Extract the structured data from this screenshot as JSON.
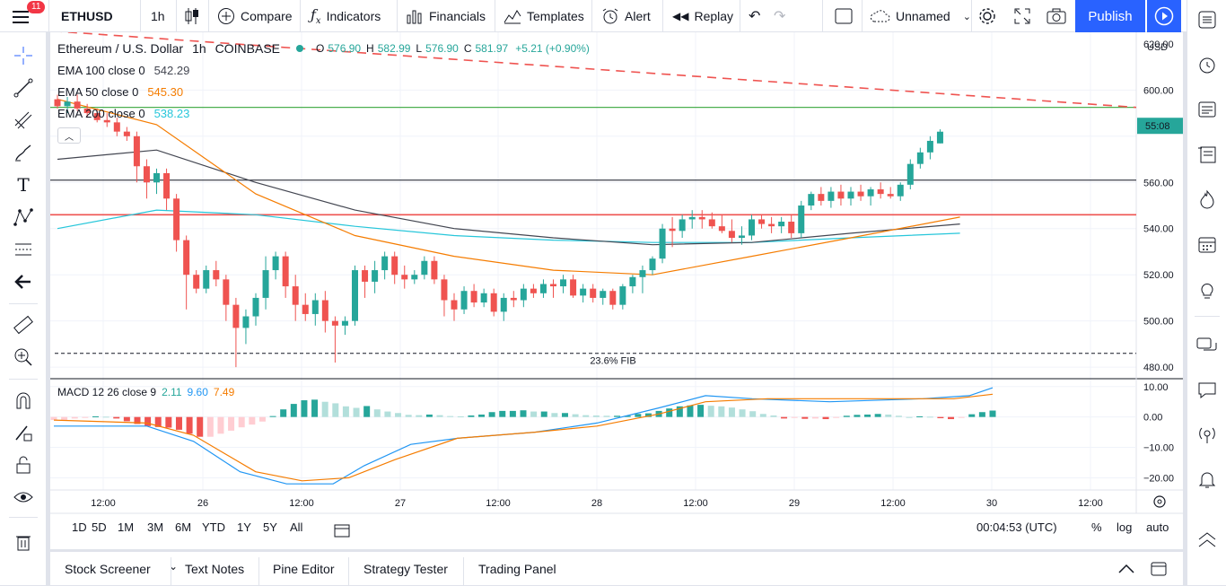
{
  "toolbar": {
    "menu_badge": "11",
    "symbol": "ETHUSD",
    "interval": "1h",
    "compare": "Compare",
    "indicators": "Indicators",
    "financials": "Financials",
    "templates": "Templates",
    "alert": "Alert",
    "replay": "Replay",
    "layout_name": "Unnamed",
    "publish": "Publish"
  },
  "legend": {
    "title": "Ethereum / U.S. Dollar",
    "interval": "1h",
    "exchange": "COINBASE",
    "o_label": "O",
    "o": "576.90",
    "h_label": "H",
    "h": "582.99",
    "l_label": "L",
    "l": "576.90",
    "c_label": "C",
    "c": "581.97",
    "change": "+5.21 (+0.90%)",
    "ema100_label": "EMA 100 close 0",
    "ema100_value": "542.29",
    "ema50_label": "EMA 50 close 0",
    "ema50_value": "545.30",
    "ema200_label": "EMA 200 close 0",
    "ema200_value": "538.23",
    "macd_label": "MACD 12 26 close 9",
    "macd_hist": "2.11",
    "macd_line": "9.60",
    "macd_signal": "7.49"
  },
  "price_axis": {
    "currency": "USD",
    "ticks": [
      "620.00",
      "600.00",
      "560.00",
      "540.00",
      "520.00",
      "500.00",
      "480.00"
    ],
    "current_price_label": "55:08"
  },
  "macd_axis": {
    "ticks": [
      "10.00",
      "0.00",
      "−10.00",
      "−20.00"
    ]
  },
  "time_axis": {
    "ticks": [
      "12:00",
      "26",
      "12:00",
      "27",
      "12:00",
      "28",
      "12:00",
      "29",
      "12:00",
      "30",
      "12:00"
    ]
  },
  "fib_label": "23.6% FIB",
  "ranges": [
    "1D",
    "5D",
    "1M",
    "3M",
    "6M",
    "YTD",
    "1Y",
    "5Y",
    "All"
  ],
  "clock": "00:04:53 (UTC)",
  "scale_options": {
    "percent": "%",
    "log": "log",
    "auto": "auto"
  },
  "bottom_tabs": [
    "Stock Screener",
    "Text Notes",
    "Pine Editor",
    "Strategy Tester",
    "Trading Panel"
  ],
  "colors": {
    "up": "#26a69a",
    "down": "#ef5350",
    "ema50": "#f57c00",
    "ema100": "#434651",
    "ema200": "#26c6da",
    "accent": "#2962ff"
  },
  "chart_data": {
    "type": "candlestick",
    "title": "Ethereum / U.S. Dollar · 1h · COINBASE",
    "ylim": [
      475,
      625
    ],
    "x_ticks": [
      "12:00",
      "26",
      "12:00",
      "27",
      "12:00",
      "28",
      "12:00",
      "29",
      "12:00",
      "30",
      "12:00"
    ],
    "candles": [
      [
        596,
        598,
        592,
        593
      ],
      [
        593,
        597,
        590,
        595
      ],
      [
        595,
        598,
        591,
        592
      ],
      [
        592,
        594,
        588,
        590
      ],
      [
        590,
        592,
        586,
        587
      ],
      [
        587,
        590,
        584,
        586
      ],
      [
        586,
        588,
        580,
        582
      ],
      [
        582,
        584,
        578,
        580
      ],
      [
        580,
        582,
        560,
        567
      ],
      [
        567,
        570,
        553,
        560
      ],
      [
        560,
        566,
        555,
        564
      ],
      [
        564,
        566,
        548,
        553
      ],
      [
        553,
        555,
        530,
        535
      ],
      [
        535,
        537,
        505,
        520
      ],
      [
        520,
        522,
        512,
        514
      ],
      [
        514,
        524,
        512,
        522
      ],
      [
        522,
        526,
        515,
        518
      ],
      [
        518,
        520,
        500,
        507
      ],
      [
        507,
        510,
        480,
        497
      ],
      [
        497,
        505,
        490,
        502
      ],
      [
        502,
        512,
        498,
        510
      ],
      [
        510,
        528,
        505,
        522
      ],
      [
        522,
        530,
        518,
        528
      ],
      [
        528,
        530,
        510,
        515
      ],
      [
        515,
        520,
        500,
        507
      ],
      [
        507,
        512,
        500,
        503
      ],
      [
        503,
        512,
        498,
        509
      ],
      [
        509,
        513,
        495,
        500
      ],
      [
        500,
        502,
        482,
        498
      ],
      [
        498,
        502,
        494,
        500
      ],
      [
        500,
        524,
        498,
        522
      ],
      [
        522,
        524,
        510,
        517
      ],
      [
        517,
        526,
        512,
        522
      ],
      [
        522,
        530,
        518,
        528
      ],
      [
        528,
        530,
        516,
        520
      ],
      [
        520,
        524,
        514,
        518
      ],
      [
        518,
        522,
        516,
        520
      ],
      [
        520,
        528,
        518,
        526
      ],
      [
        526,
        528,
        516,
        518
      ],
      [
        518,
        520,
        502,
        509
      ],
      [
        509,
        512,
        500,
        505
      ],
      [
        505,
        515,
        503,
        513
      ],
      [
        513,
        516,
        506,
        508
      ],
      [
        508,
        514,
        506,
        512
      ],
      [
        512,
        514,
        502,
        504
      ],
      [
        504,
        512,
        500,
        510
      ],
      [
        510,
        513,
        506,
        509
      ],
      [
        509,
        516,
        506,
        514
      ],
      [
        514,
        516,
        510,
        512
      ],
      [
        512,
        518,
        510,
        516
      ],
      [
        516,
        518,
        510,
        515
      ],
      [
        515,
        520,
        512,
        518
      ],
      [
        518,
        520,
        510,
        511
      ],
      [
        511,
        516,
        508,
        514
      ],
      [
        514,
        516,
        508,
        510
      ],
      [
        510,
        514,
        507,
        513
      ],
      [
        513,
        514,
        505,
        507
      ],
      [
        507,
        516,
        505,
        515
      ],
      [
        515,
        520,
        512,
        519
      ],
      [
        519,
        524,
        512,
        522
      ],
      [
        522,
        528,
        520,
        527
      ],
      [
        527,
        542,
        525,
        540
      ],
      [
        540,
        545,
        532,
        539
      ],
      [
        539,
        546,
        536,
        544
      ],
      [
        544,
        548,
        540,
        545
      ],
      [
        545,
        548,
        540,
        544
      ],
      [
        544,
        547,
        540,
        541
      ],
      [
        541,
        546,
        538,
        539
      ],
      [
        539,
        544,
        534,
        536
      ],
      [
        536,
        541,
        533,
        537
      ],
      [
        537,
        546,
        535,
        544
      ],
      [
        544,
        546,
        540,
        542
      ],
      [
        542,
        545,
        538,
        541
      ],
      [
        541,
        545,
        538,
        543
      ],
      [
        543,
        546,
        536,
        538
      ],
      [
        538,
        552,
        536,
        550
      ],
      [
        550,
        556,
        548,
        555
      ],
      [
        555,
        558,
        550,
        552
      ],
      [
        552,
        558,
        549,
        556
      ],
      [
        556,
        559,
        550,
        553
      ],
      [
        553,
        558,
        550,
        556
      ],
      [
        556,
        559,
        552,
        554
      ],
      [
        554,
        558,
        550,
        557
      ],
      [
        557,
        560,
        553,
        555
      ],
      [
        555,
        558,
        553,
        554
      ],
      [
        554,
        560,
        552,
        559
      ],
      [
        559,
        570,
        557,
        568
      ],
      [
        568,
        575,
        566,
        573
      ],
      [
        573,
        580,
        570,
        578
      ],
      [
        576.9,
        582.99,
        576.9,
        581.97
      ]
    ],
    "ema50": [
      [
        0,
        596
      ],
      [
        10,
        585
      ],
      [
        20,
        555
      ],
      [
        30,
        537
      ],
      [
        40,
        528
      ],
      [
        50,
        522
      ],
      [
        60,
        520
      ],
      [
        70,
        528
      ],
      [
        80,
        536
      ],
      [
        91,
        545
      ]
    ],
    "ema100": [
      [
        0,
        570
      ],
      [
        10,
        574
      ],
      [
        20,
        560
      ],
      [
        30,
        548
      ],
      [
        40,
        540
      ],
      [
        50,
        536
      ],
      [
        60,
        533
      ],
      [
        70,
        534
      ],
      [
        80,
        538
      ],
      [
        91,
        542
      ]
    ],
    "ema200": [
      [
        0,
        540
      ],
      [
        10,
        548
      ],
      [
        20,
        546
      ],
      [
        30,
        541
      ],
      [
        40,
        537
      ],
      [
        50,
        535
      ],
      [
        60,
        534
      ],
      [
        70,
        534
      ],
      [
        80,
        536
      ],
      [
        91,
        538
      ]
    ],
    "horizontal_levels": [
      592.5,
      561,
      546,
      486
    ],
    "trendline": [
      [
        -2,
        626
      ],
      [
        91,
        594
      ]
    ],
    "macd": {
      "ylim": [
        -24,
        12
      ],
      "hist": [
        -1,
        -1,
        -0.5,
        -0.3,
        0.2,
        0.1,
        -0.5,
        -1.4,
        -2.3,
        -3,
        -3.3,
        -3.5,
        -4.2,
        -5.5,
        -6.5,
        -6.5,
        -5.5,
        -4.5,
        -3.4,
        -2.5,
        -1.5,
        0.3,
        2.5,
        4.3,
        5.5,
        5.7,
        5,
        4.5,
        3.5,
        3,
        3.6,
        2.5,
        1.8,
        1.3,
        0.7,
        0.6,
        0.8,
        0.6,
        0.3,
        0.2,
        0.5,
        0.8,
        1.6,
        2,
        2,
        2.2,
        1.8,
        1.8,
        1.3,
        1.3,
        0.9,
        0.6,
        0.5,
        0.4,
        0.4,
        0.4,
        1,
        1.2,
        2,
        2.8,
        3.5,
        3.8,
        4,
        3.7,
        3.5,
        3.1,
        2.5,
        1.9,
        1,
        0.5,
        -0.5,
        -0.3,
        -0.6,
        -0.5,
        -0.7,
        -0.3,
        0.4,
        0.7,
        0.8,
        1,
        0.8,
        0.4,
        0,
        0.2,
        0.1,
        -0.4,
        -0.7,
        -0.3,
        0.9,
        1.6,
        2.11
      ],
      "macd_line": [
        [
          0,
          -3
        ],
        [
          12,
          -3
        ],
        [
          18,
          -8
        ],
        [
          24,
          -18
        ],
        [
          30,
          -22
        ],
        [
          36,
          -22
        ],
        [
          40,
          -16
        ],
        [
          46,
          -9
        ],
        [
          52,
          -7
        ],
        [
          62,
          -5
        ],
        [
          70,
          -2
        ],
        [
          78,
          3
        ],
        [
          84,
          7
        ],
        [
          90,
          6
        ],
        [
          100,
          5
        ],
        [
          112,
          6
        ],
        [
          118,
          7
        ],
        [
          121,
          9.6
        ]
      ],
      "signal_line": [
        [
          0,
          -1
        ],
        [
          12,
          -2
        ],
        [
          18,
          -6
        ],
        [
          26,
          -18
        ],
        [
          32,
          -21
        ],
        [
          38,
          -20
        ],
        [
          44,
          -14
        ],
        [
          52,
          -7
        ],
        [
          62,
          -5
        ],
        [
          70,
          -3
        ],
        [
          78,
          1
        ],
        [
          84,
          5
        ],
        [
          92,
          6
        ],
        [
          104,
          6
        ],
        [
          116,
          6
        ],
        [
          121,
          7.49
        ]
      ]
    }
  }
}
